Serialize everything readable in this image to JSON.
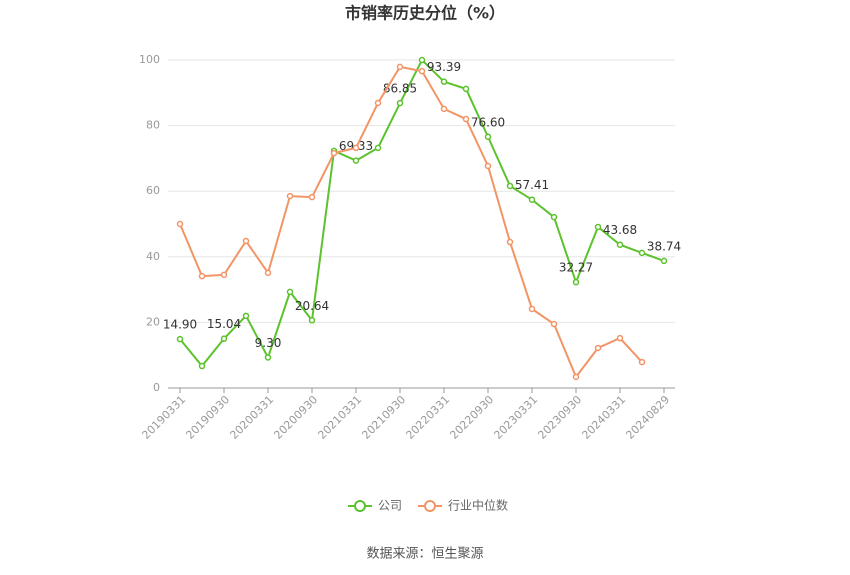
{
  "chart_data": {
    "type": "line",
    "title": "市销率历史分位（%）",
    "categories": [
      "20190331",
      null,
      "20190930",
      null,
      "20200331",
      null,
      "20200930",
      null,
      "20210331",
      null,
      "20210930",
      null,
      "20220331",
      null,
      "20220930",
      null,
      "20230331",
      null,
      "20230930",
      null,
      "20240331",
      null,
      "20240829"
    ],
    "series": [
      {
        "name": "公司",
        "color": "#5cc22d",
        "values": [
          14.9,
          6.7,
          15.04,
          22.0,
          9.3,
          29.3,
          20.64,
          72.3,
          69.33,
          73.2,
          86.85,
          100,
          93.39,
          91.2,
          76.6,
          61.6,
          57.41,
          52.1,
          32.27,
          49.1,
          43.68,
          41.2,
          38.74
        ],
        "value_labels": [
          "14.90",
          null,
          "15.04",
          null,
          "9.30",
          null,
          "20.64",
          null,
          "69.33",
          null,
          "86.85",
          null,
          "93.39",
          null,
          "76.60",
          null,
          "57.41",
          null,
          "32.27",
          null,
          "43.68",
          null,
          "38.74"
        ]
      },
      {
        "name": "行业中位数",
        "color": "#f39466",
        "values": [
          50.0,
          34.1,
          34.5,
          44.8,
          35.1,
          58.5,
          58.2,
          71.6,
          73.2,
          86.9,
          97.9,
          96.6,
          85.1,
          82.0,
          67.7,
          44.5,
          24.1,
          19.5,
          3.4,
          12.2,
          15.2,
          7.9,
          null
        ]
      }
    ],
    "ylim": [
      0,
      100
    ],
    "yticks": [
      0,
      20,
      40,
      60,
      80,
      100
    ],
    "grid": true,
    "legend": "bottom",
    "source": "数据来源：恒生聚源"
  }
}
